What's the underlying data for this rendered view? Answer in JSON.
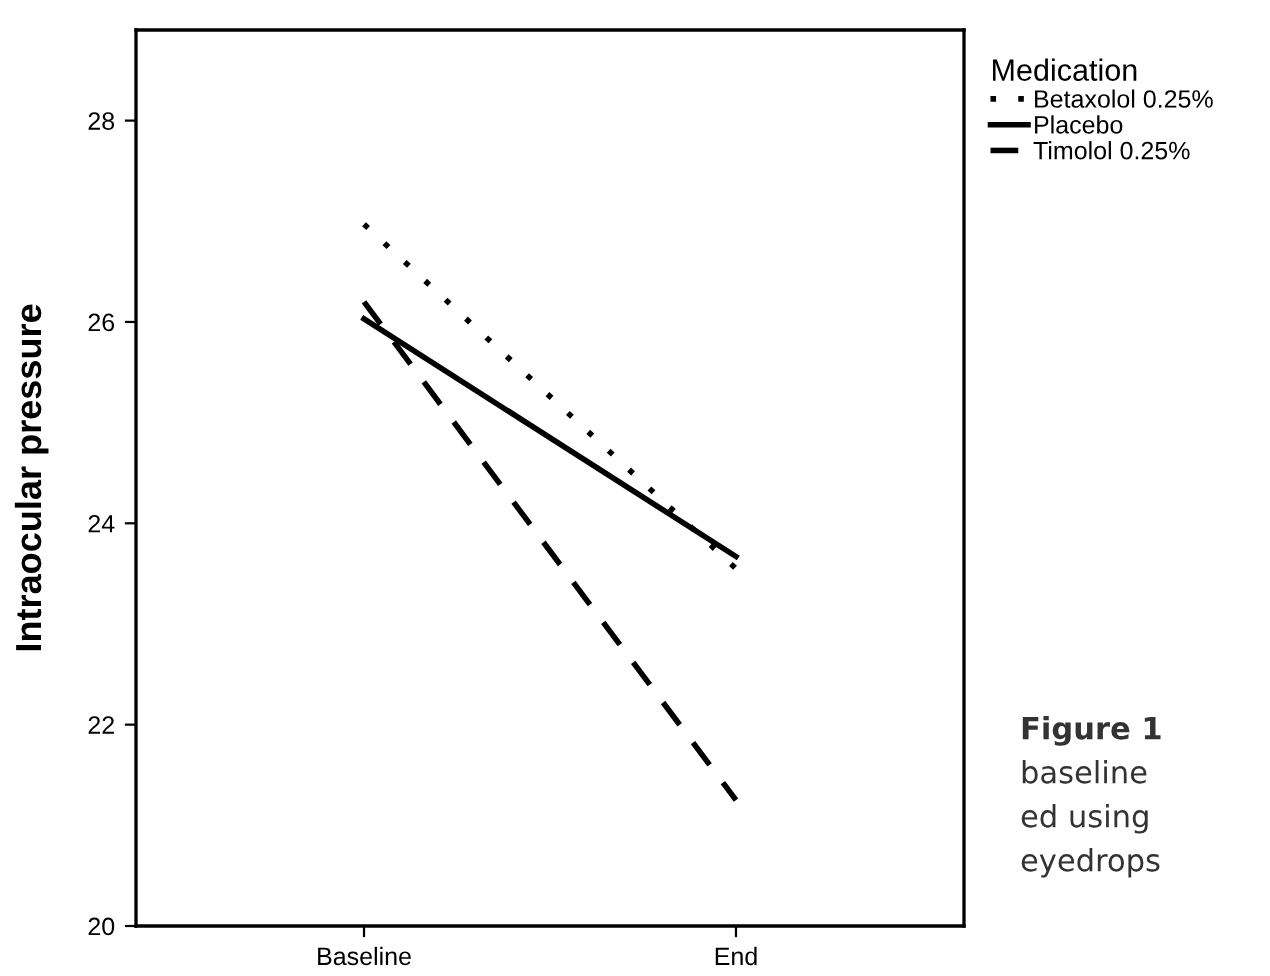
{
  "chart_data": {
    "type": "line",
    "ylabel": "Intraocular pressure",
    "legend_title": "Medication",
    "categories": [
      "Baseline",
      "End"
    ],
    "series": [
      {
        "name": "Betaxolol 0.25%",
        "color": "#000000",
        "line_style": "dotted",
        "values": [
          26.97,
          23.55
        ]
      },
      {
        "name": "Placebo",
        "color": "#000000",
        "line_style": "solid",
        "values": [
          26.03,
          23.67
        ]
      },
      {
        "name": "Timolol 0.25%",
        "color": "#000000",
        "line_style": "dashed",
        "values": [
          26.2,
          21.25
        ]
      }
    ],
    "ylim": [
      20,
      28.9
    ],
    "yticks": [
      20,
      22,
      24,
      26,
      28
    ],
    "grid": false,
    "legend": "top right",
    "marker": "none",
    "annotations": [
      "Figure 1",
      "baseline",
      "ed using",
      "eyedrops"
    ]
  }
}
